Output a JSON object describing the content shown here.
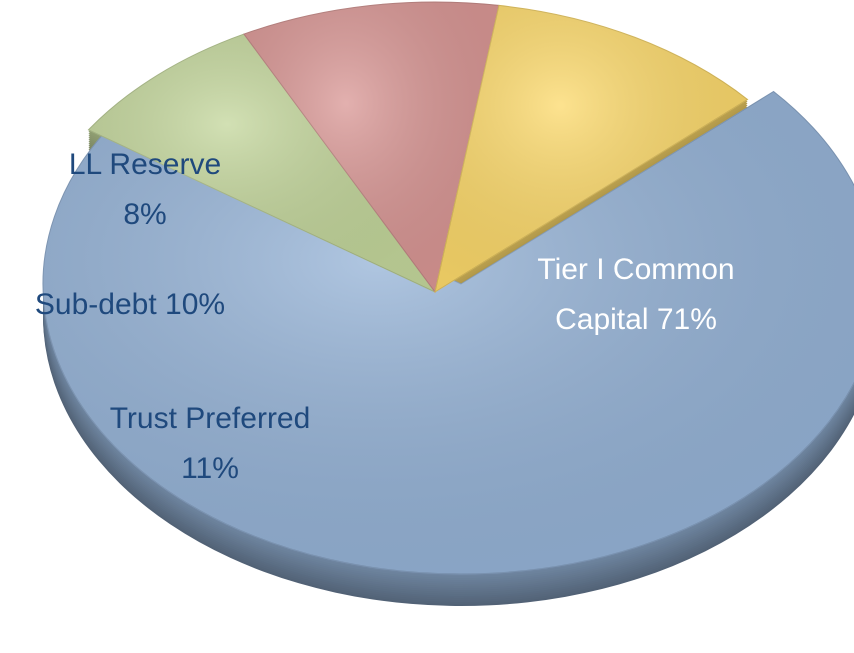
{
  "chart_data": {
    "type": "pie",
    "categories": [
      "Tier I Common Capital",
      "LL Reserve",
      "Sub-debt",
      "Trust Preferred"
    ],
    "values": [
      71,
      8,
      10,
      11
    ],
    "value_labels": [
      "71%",
      "8%",
      "10%",
      "11%"
    ],
    "colors": [
      "#95b3d7",
      "#c3d69b",
      "#d99694",
      "#fcd96a"
    ],
    "label_colors": [
      "#ffffff",
      "#1f497d",
      "#1f497d",
      "#1f497d"
    ]
  }
}
